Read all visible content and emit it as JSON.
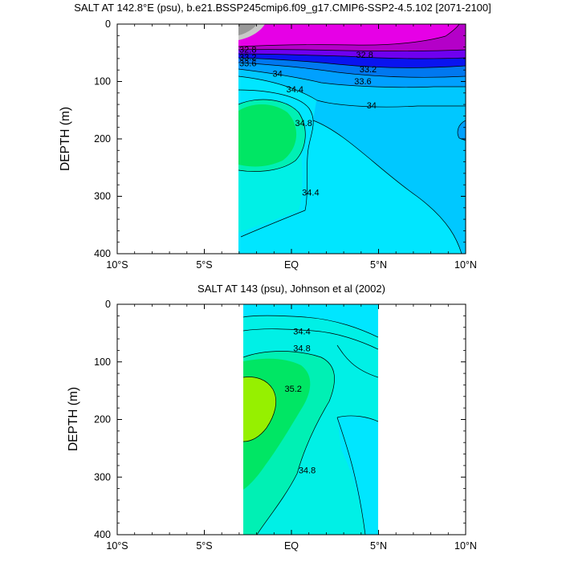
{
  "chart_data": [
    {
      "type": "contour",
      "title": "SALT AT 142.8°E (psu), b.e21.BSSP245cmip6.f09_g17.CMIP6-SSP2-4.5.102 [2071-2100]",
      "ylabel": "DEPTH (m)",
      "xlim": [
        -10,
        10
      ],
      "ylim": [
        400,
        0
      ],
      "x_ticks": [
        "10°S",
        "5°S",
        "EQ",
        "5°N",
        "10°N"
      ],
      "y_ticks": [
        "0",
        "100",
        "200",
        "300",
        "400"
      ],
      "data_extent_x": [
        -3.2,
        10
      ],
      "contour_labels": [
        {
          "text": "32.8",
          "x": -2.5,
          "y": 44
        },
        {
          "text": "33.2",
          "x": -2.5,
          "y": 57
        },
        {
          "text": "33.6",
          "x": -2.5,
          "y": 68
        },
        {
          "text": "34",
          "x": -0.8,
          "y": 86
        },
        {
          "text": "34.4",
          "x": 0.2,
          "y": 113
        },
        {
          "text": "34.8",
          "x": 0.7,
          "y": 172
        },
        {
          "text": "34.4",
          "x": 1.1,
          "y": 293
        },
        {
          "text": "32.8",
          "x": 4.2,
          "y": 53
        },
        {
          "text": "33.2",
          "x": 4.4,
          "y": 78
        },
        {
          "text": "33.6",
          "x": 4.1,
          "y": 99
        },
        {
          "text": "34",
          "x": 4.6,
          "y": 141
        }
      ]
    },
    {
      "type": "contour",
      "title": "SALT AT 143 (psu), Johnson et al (2002)",
      "ylabel": "DEPTH (m)",
      "xlim": [
        -10,
        10
      ],
      "ylim": [
        400,
        0
      ],
      "x_ticks": [
        "10°S",
        "5°S",
        "EQ",
        "5°N",
        "10°N"
      ],
      "y_ticks": [
        "0",
        "100",
        "200",
        "300",
        "400"
      ],
      "data_extent_x": [
        -2.9,
        5
      ],
      "contour_labels": [
        {
          "text": "34.4",
          "x": 0.6,
          "y": 47
        },
        {
          "text": "34.8",
          "x": 0.6,
          "y": 76
        },
        {
          "text": "35.2",
          "x": 0.1,
          "y": 146
        },
        {
          "text": "34.8",
          "x": 0.9,
          "y": 288
        }
      ]
    }
  ],
  "colors": {
    "magenta": "#e600e6",
    "purple": "#b400c8",
    "blue_violet": "#6e00f0",
    "blue": "#0a14f0",
    "mid_blue": "#0078f0",
    "dodger": "#00a0ff",
    "sky": "#00c8ff",
    "cyan": "#00e6ff",
    "aqua": "#00f0e6",
    "turquoise": "#00f0b4",
    "green_cyan": "#00f0a0",
    "green": "#00e664",
    "lime": "#96f000",
    "gray": "#999999"
  }
}
